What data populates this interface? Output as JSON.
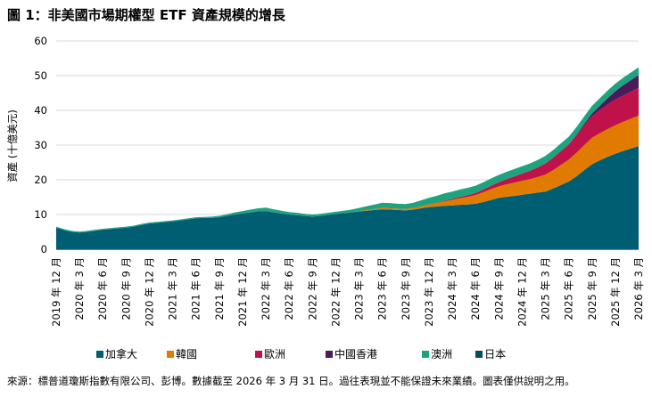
{
  "title": "圖 1：非美國市場期權型 ETF 資產規模的增長",
  "footer": "來源：標普道瓊斯指數有限公司、彭博。數據截至 2026 年 3 月 31 日。過往表現並不能保證未來業績。圖表僅供說明之用。",
  "colors": {
    "canada": "#005e73",
    "korea": "#e07b00",
    "europe": "#c0124a",
    "hongkong": "#4a1a5a",
    "australia": "#1ea37e",
    "japan": "#004f5f"
  },
  "chart_data": {
    "type": "area",
    "stacked": true,
    "ylabel": "資產 (十億美元)",
    "xlabel": "",
    "ylim": [
      0,
      60
    ],
    "yticks": [
      0,
      10,
      20,
      30,
      40,
      50,
      60
    ],
    "grid": true,
    "legend_position": "bottom",
    "x_tick_labels": [
      "2019 年 12 月",
      "2020 年 3 月",
      "2020 年 6 月",
      "2020 年 9 月",
      "2020 年 12 月",
      "2021 年 3 月",
      "2021 年 6 月",
      "2021 年 9 月",
      "2021 年 12 月",
      "2022 年 3 月",
      "2022 年 6 月",
      "2022 年 9 月",
      "2022 年 12 月",
      "2023 年 3 月",
      "2023 年 6 月",
      "2023 年 9 月",
      "2023 年 12 月",
      "2024 年 3 月",
      "2024 年 6 月",
      "2024 年 9 月",
      "2024 年 12 月",
      "2025 年 3 月",
      "2025 年 6 月",
      "2025 年 9 月",
      "2025 年 12 月",
      "2026 年 3 月"
    ],
    "x": [
      "2019-12",
      "2020-01",
      "2020-02",
      "2020-03",
      "2020-04",
      "2020-05",
      "2020-06",
      "2020-07",
      "2020-08",
      "2020-09",
      "2020-10",
      "2020-11",
      "2020-12",
      "2021-01",
      "2021-02",
      "2021-03",
      "2021-04",
      "2021-05",
      "2021-06",
      "2021-07",
      "2021-08",
      "2021-09",
      "2021-10",
      "2021-11",
      "2021-12",
      "2022-01",
      "2022-02",
      "2022-03",
      "2022-04",
      "2022-05",
      "2022-06",
      "2022-07",
      "2022-08",
      "2022-09",
      "2022-10",
      "2022-11",
      "2022-12",
      "2023-01",
      "2023-02",
      "2023-03",
      "2023-04",
      "2023-05",
      "2023-06",
      "2023-07",
      "2023-08",
      "2023-09",
      "2023-10",
      "2023-11",
      "2023-12",
      "2024-01",
      "2024-02",
      "2024-03",
      "2024-04",
      "2024-05",
      "2024-06",
      "2024-07",
      "2024-08",
      "2024-09",
      "2024-10",
      "2024-11",
      "2024-12",
      "2025-01",
      "2025-02",
      "2025-03",
      "2025-04",
      "2025-05",
      "2025-06",
      "2025-07",
      "2025-08",
      "2025-09",
      "2025-10",
      "2025-11",
      "2025-12",
      "2026-01",
      "2026-02",
      "2026-03"
    ],
    "series": [
      {
        "name": "加拿大",
        "color_key": "canada",
        "values": [
          6.2,
          5.5,
          5.0,
          4.8,
          5.0,
          5.3,
          5.6,
          5.8,
          6.0,
          6.2,
          6.5,
          7.0,
          7.4,
          7.6,
          7.8,
          8.0,
          8.3,
          8.6,
          8.9,
          9.0,
          9.0,
          9.2,
          9.6,
          10.0,
          10.3,
          10.6,
          10.9,
          11.0,
          10.6,
          10.3,
          10.0,
          9.8,
          9.6,
          9.4,
          9.6,
          9.9,
          10.2,
          10.4,
          10.6,
          10.9,
          11.1,
          11.3,
          11.5,
          11.4,
          11.3,
          11.2,
          11.4,
          11.8,
          12.1,
          12.3,
          12.5,
          12.6,
          12.8,
          12.9,
          13.1,
          13.6,
          14.2,
          14.8,
          15.1,
          15.4,
          15.7,
          16.0,
          16.3,
          16.6,
          17.5,
          18.5,
          19.5,
          21.0,
          22.8,
          24.5,
          25.6,
          26.6,
          27.5,
          28.3,
          29.0,
          29.7
        ]
      },
      {
        "name": "韓國",
        "color_key": "korea",
        "values": [
          0,
          0,
          0,
          0,
          0,
          0,
          0,
          0,
          0,
          0,
          0,
          0,
          0,
          0,
          0,
          0,
          0,
          0,
          0,
          0,
          0,
          0,
          0,
          0,
          0,
          0,
          0,
          0,
          0,
          0,
          0,
          0,
          0,
          0,
          0,
          0,
          0,
          0,
          0,
          0.1,
          0.2,
          0.3,
          0.4,
          0.4,
          0.4,
          0.4,
          0.5,
          0.6,
          0.8,
          1.0,
          1.3,
          1.6,
          1.9,
          2.2,
          2.5,
          2.8,
          3.1,
          3.3,
          3.6,
          3.8,
          4.0,
          4.2,
          4.5,
          4.9,
          5.3,
          5.8,
          6.3,
          6.8,
          7.2,
          7.6,
          7.8,
          8.0,
          8.2,
          8.4,
          8.6,
          8.8
        ]
      },
      {
        "name": "歐洲",
        "color_key": "europe",
        "values": [
          0,
          0,
          0,
          0,
          0,
          0,
          0,
          0,
          0,
          0,
          0,
          0,
          0,
          0,
          0,
          0,
          0,
          0,
          0,
          0,
          0,
          0,
          0,
          0,
          0,
          0,
          0,
          0,
          0,
          0,
          0,
          0,
          0,
          0,
          0,
          0,
          0,
          0,
          0,
          0,
          0,
          0,
          0,
          0,
          0,
          0,
          0,
          0,
          0,
          0.1,
          0.2,
          0.3,
          0.4,
          0.5,
          0.6,
          0.8,
          1.0,
          1.2,
          1.5,
          1.8,
          2.1,
          2.4,
          2.8,
          3.2,
          3.6,
          4.0,
          4.4,
          5.0,
          5.6,
          6.2,
          6.7,
          7.1,
          7.4,
          7.6,
          7.8,
          8.0
        ]
      },
      {
        "name": "中國香港",
        "color_key": "hongkong",
        "values": [
          0,
          0,
          0,
          0,
          0,
          0,
          0,
          0,
          0,
          0,
          0,
          0,
          0,
          0,
          0,
          0,
          0,
          0,
          0,
          0,
          0,
          0,
          0,
          0,
          0,
          0,
          0,
          0,
          0,
          0,
          0,
          0,
          0,
          0,
          0,
          0,
          0,
          0,
          0,
          0,
          0,
          0,
          0,
          0,
          0,
          0,
          0,
          0,
          0,
          0,
          0,
          0,
          0,
          0,
          0,
          0,
          0,
          0,
          0,
          0,
          0,
          0,
          0,
          0,
          0,
          0,
          0,
          0.2,
          0.5,
          0.8,
          1.2,
          1.8,
          2.4,
          2.9,
          3.3,
          3.7
        ]
      },
      {
        "name": "澳洲",
        "color_key": "australia",
        "values": [
          0.3,
          0.3,
          0.3,
          0.3,
          0.3,
          0.3,
          0.3,
          0.3,
          0.3,
          0.3,
          0.3,
          0.3,
          0.3,
          0.3,
          0.3,
          0.3,
          0.3,
          0.3,
          0.3,
          0.3,
          0.4,
          0.4,
          0.5,
          0.6,
          0.7,
          0.8,
          0.9,
          1.0,
          0.9,
          0.8,
          0.7,
          0.7,
          0.6,
          0.6,
          0.6,
          0.6,
          0.6,
          0.7,
          0.8,
          0.9,
          1.1,
          1.3,
          1.5,
          1.5,
          1.4,
          1.4,
          1.5,
          1.7,
          1.9,
          2.0,
          2.1,
          2.1,
          2.1,
          2.1,
          2.1,
          2.1,
          2.1,
          2.1,
          2.1,
          2.1,
          2.1,
          2.1,
          2.1,
          2.2,
          2.2,
          2.2,
          2.2,
          2.2,
          2.2,
          2.2,
          2.2,
          2.2,
          2.2,
          2.2,
          2.2,
          2.2
        ]
      },
      {
        "name": "日本",
        "color_key": "japan",
        "values": [
          0,
          0,
          0,
          0,
          0,
          0,
          0,
          0,
          0,
          0,
          0,
          0,
          0,
          0,
          0,
          0,
          0,
          0,
          0,
          0,
          0,
          0,
          0,
          0,
          0,
          0,
          0,
          0,
          0,
          0,
          0,
          0,
          0,
          0,
          0,
          0,
          0,
          0,
          0,
          0,
          0,
          0,
          0,
          0,
          0,
          0,
          0,
          0,
          0,
          0,
          0,
          0,
          0,
          0,
          0,
          0,
          0,
          0,
          0,
          0,
          0,
          0,
          0,
          0,
          0,
          0,
          0,
          0,
          0,
          0,
          0,
          0,
          0,
          0,
          0,
          0
        ]
      }
    ]
  }
}
